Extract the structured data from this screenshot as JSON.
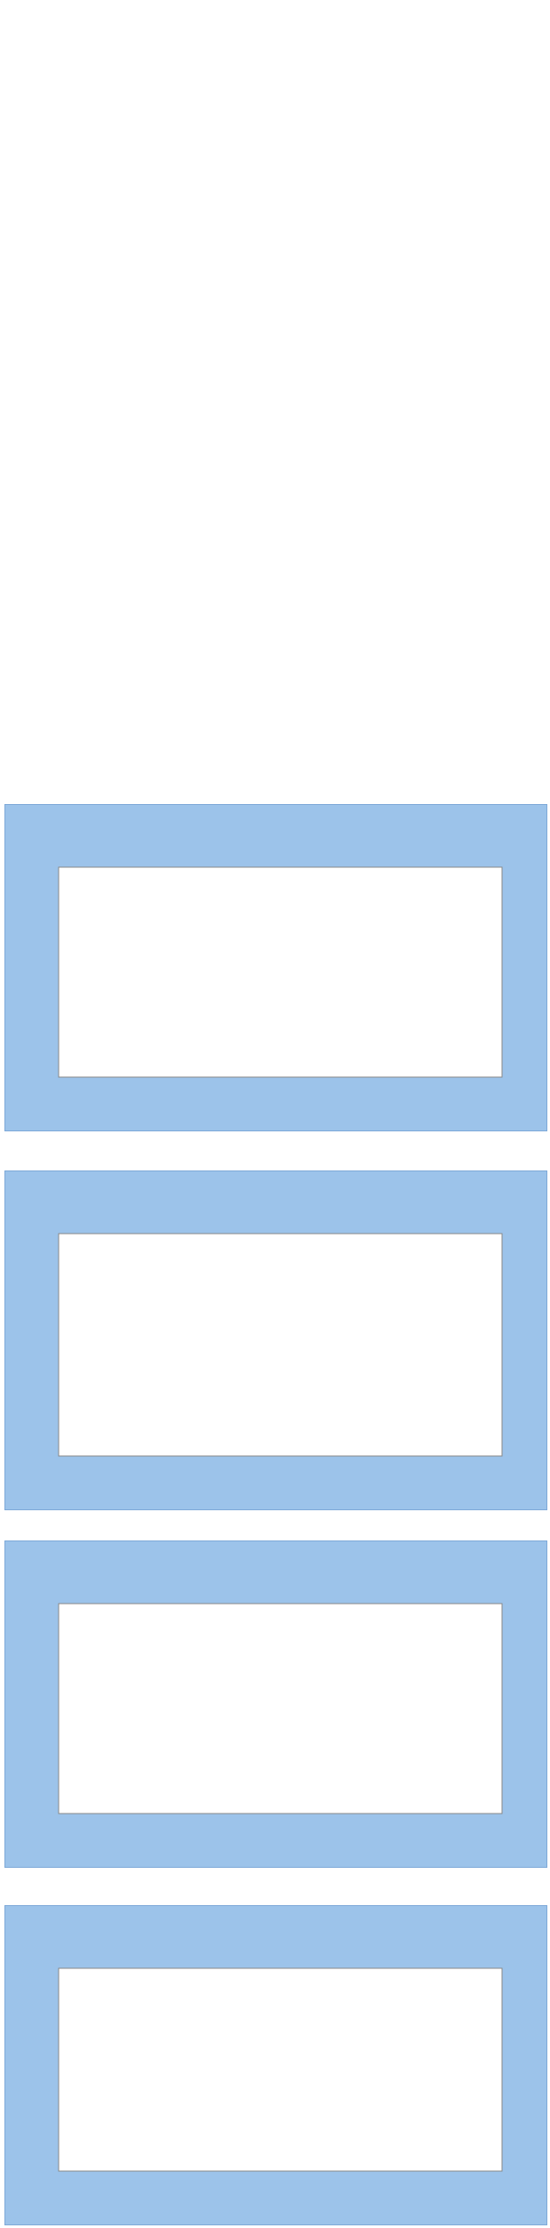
{
  "table1": {
    "title": "",
    "unit": "",
    "headers": [],
    "rows": []
  },
  "table2": {
    "title": "",
    "unit": "",
    "headers": [],
    "rows": []
  },
  "chart_data": [
    {
      "type": "bar",
      "caption": "",
      "title": "",
      "unit_label": "",
      "legend": [],
      "categories": [],
      "series": [],
      "yleft": [],
      "yright": []
    },
    {
      "type": "bar",
      "caption": "",
      "title": "",
      "unit_label": "",
      "legend": [],
      "categories": [],
      "series": [],
      "yleft": [],
      "yright": []
    },
    {
      "type": "bar",
      "caption": "",
      "title": "",
      "unit_label": "",
      "legend": [],
      "categories": [],
      "series": [],
      "yleft": [],
      "yright": []
    },
    {
      "type": "bar",
      "caption": "",
      "title": "",
      "unit_label": "",
      "legend": [],
      "categories": [],
      "series": [],
      "yleft": [],
      "yright": []
    }
  ],
  "colors": {
    "header": "#1d3e8a",
    "bar_pink": "#f4a0cc",
    "bar_orange": "#f39a1d",
    "bar_green": "#3aaa6e",
    "line_red": "#e01010",
    "line_blue": "#1030d0",
    "negative": "#e00000",
    "panel": "#9cc3ea"
  }
}
